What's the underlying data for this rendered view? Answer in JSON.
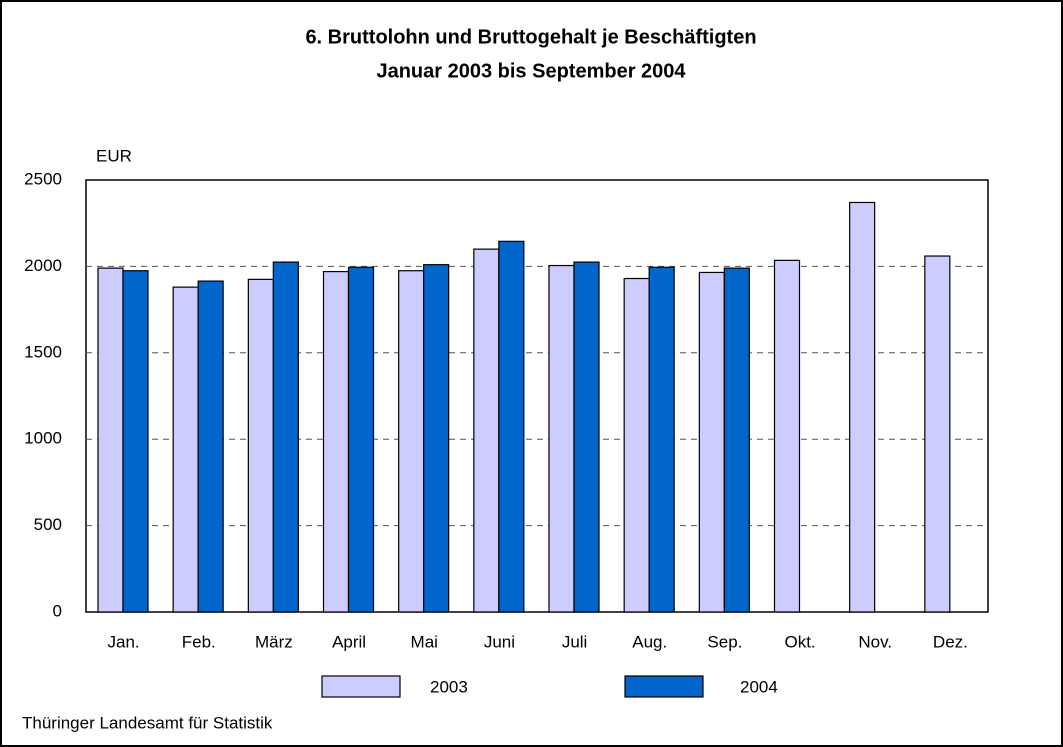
{
  "chart_data": {
    "type": "bar",
    "title": "6. Bruttolohn und Bruttogehalt je Beschäftigten",
    "subtitle": "Januar 2003 bis September 2004",
    "y_label": "EUR",
    "source": "Thüringer Landesamt für Statistik",
    "categories": [
      "Jan.",
      "Feb.",
      "März",
      "April",
      "Mai",
      "Juni",
      "Juli",
      "Aug.",
      "Sep.",
      "Okt.",
      "Nov.",
      "Dez."
    ],
    "series": [
      {
        "name": "2003",
        "color": "#ccccff",
        "values": [
          1990,
          1880,
          1925,
          1970,
          1975,
          2100,
          2005,
          1930,
          1965,
          2035,
          2370,
          2060
        ]
      },
      {
        "name": "2004",
        "color": "#0066cc",
        "values": [
          1975,
          1915,
          2025,
          1995,
          2010,
          2145,
          2025,
          1995,
          1990,
          null,
          null,
          null
        ]
      }
    ],
    "ylim": [
      0,
      2500
    ],
    "yticks": [
      0,
      500,
      1000,
      1500,
      2000,
      2500
    ],
    "grid": true
  }
}
